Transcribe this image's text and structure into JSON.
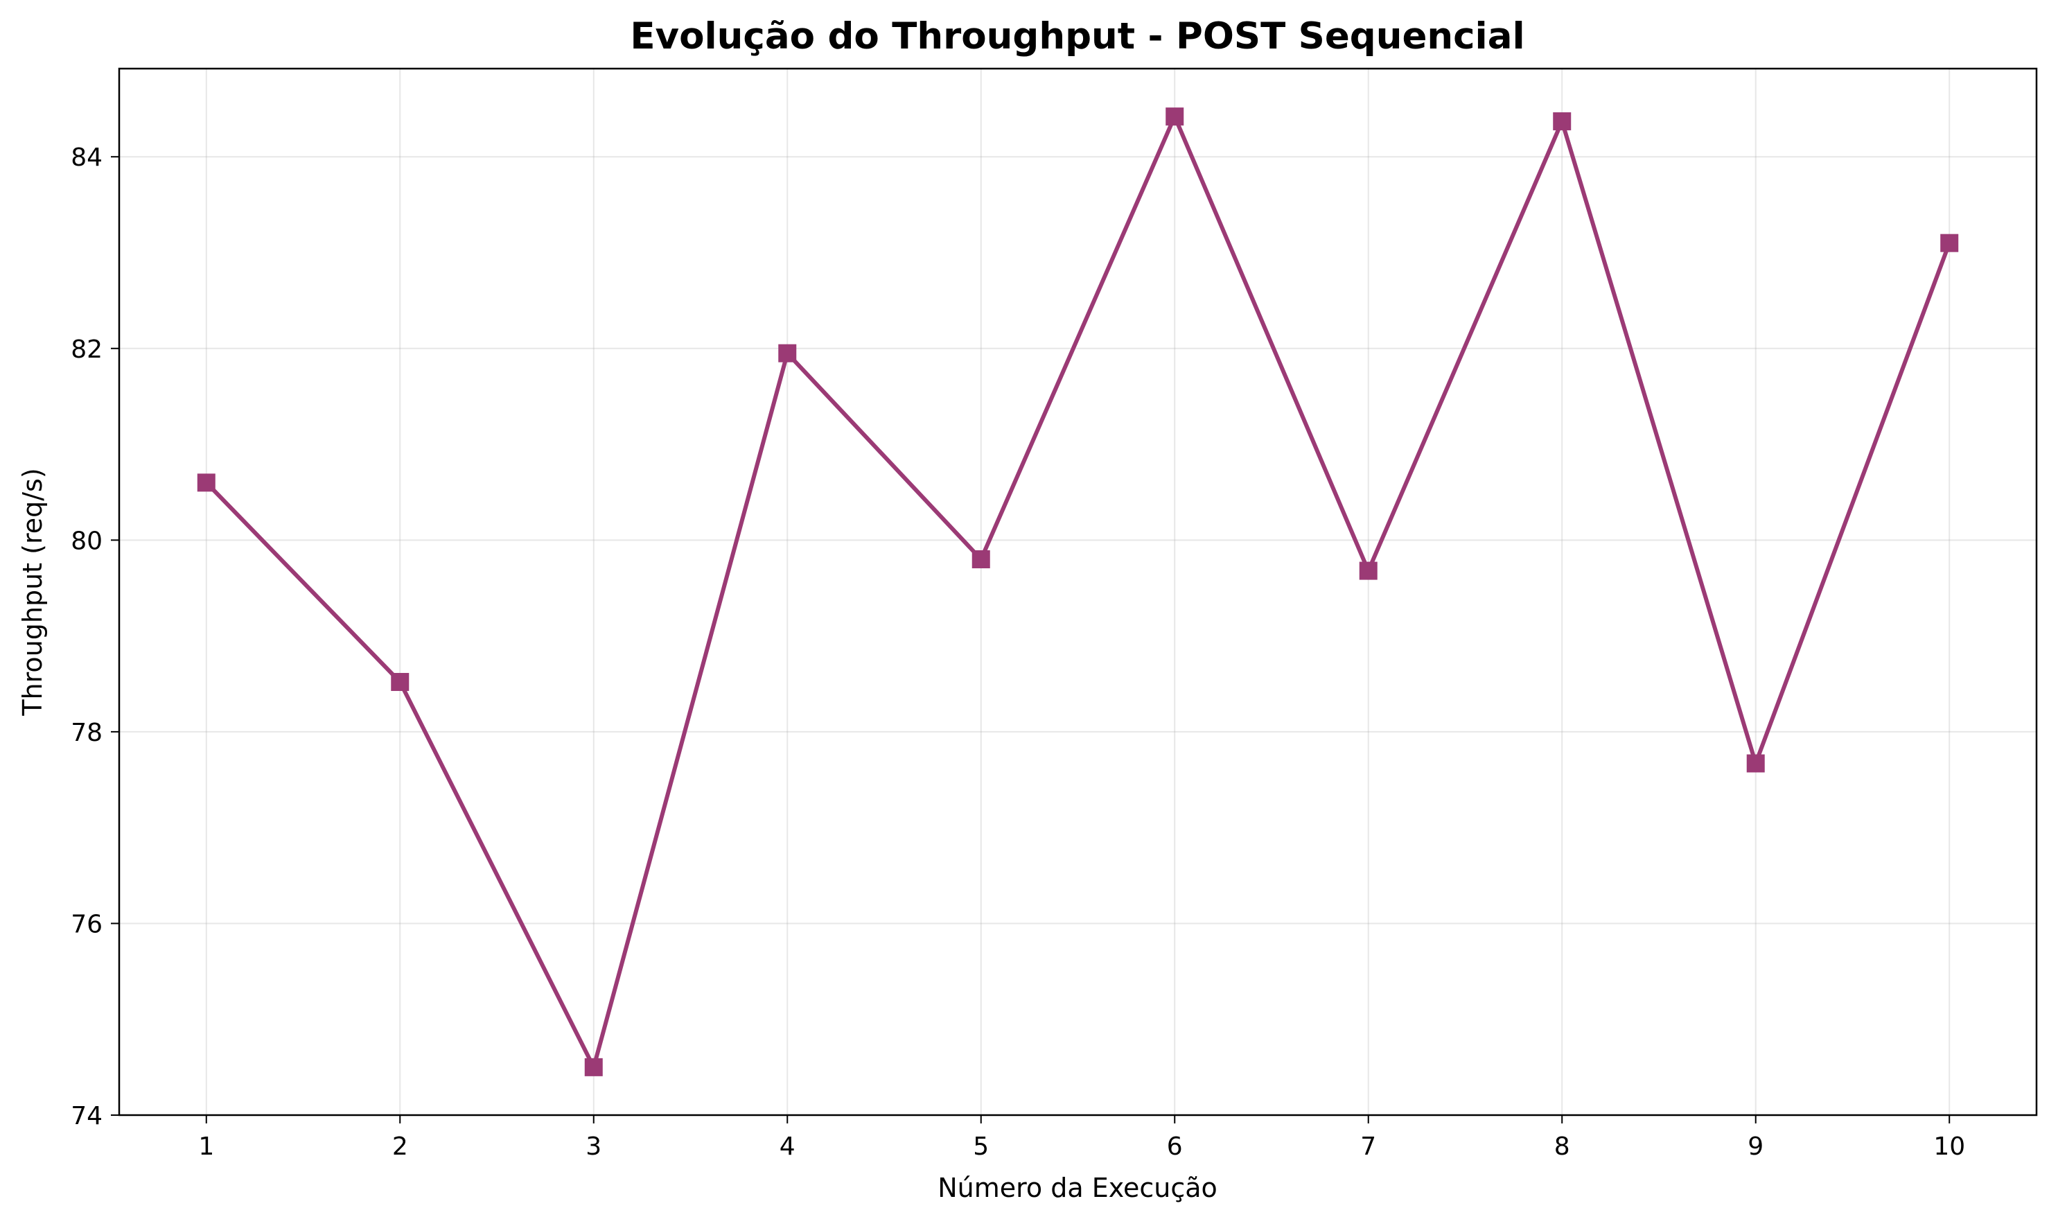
{
  "chart_data": {
    "type": "line",
    "title": "Evolução do Throughput - POST Sequencial",
    "xlabel": "Número da Execução",
    "ylabel": "Throughput (req/s)",
    "x": [
      1,
      2,
      3,
      4,
      5,
      6,
      7,
      8,
      9,
      10
    ],
    "x_ticks": [
      "1",
      "2",
      "3",
      "4",
      "5",
      "6",
      "7",
      "8",
      "9",
      "10"
    ],
    "y_ticks": [
      "74",
      "76",
      "78",
      "80",
      "82",
      "84"
    ],
    "y_tick_values": [
      74,
      76,
      78,
      80,
      82,
      84
    ],
    "xlim": [
      0.55,
      10.45
    ],
    "ylim": [
      74,
      84.92
    ],
    "series": [
      {
        "color": "#9b3a75",
        "marker": "square",
        "values": [
          80.6,
          78.52,
          74.5,
          81.95,
          79.8,
          84.42,
          79.68,
          84.37,
          77.67,
          83.1
        ]
      }
    ],
    "grid": true,
    "legend": "none"
  }
}
